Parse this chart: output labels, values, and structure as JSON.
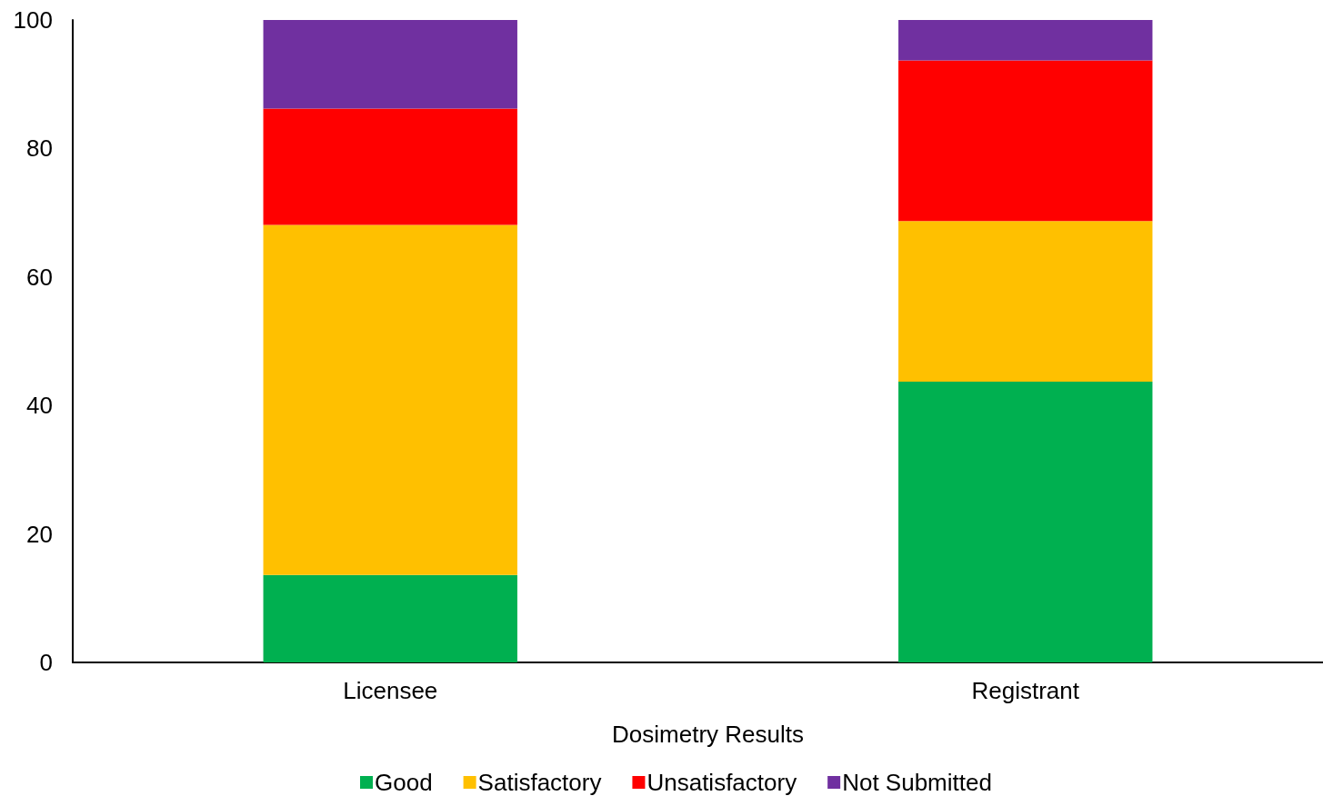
{
  "chart_data": {
    "type": "bar",
    "xlabel": "Dosimetry Results",
    "categories": [
      "Licensee",
      "Registrant"
    ],
    "series": [
      {
        "name": "Good",
        "color": "#00b050",
        "values": [
          13.6,
          43.7
        ]
      },
      {
        "name": "Satisfactory",
        "color": "#ffc000",
        "values": [
          54.5,
          25.0
        ]
      },
      {
        "name": "Unsatisfactory",
        "color": "#ff0000",
        "values": [
          18.1,
          25.0
        ]
      },
      {
        "name": "Not Submitted",
        "color": "#7030a0",
        "values": [
          13.8,
          6.3
        ]
      }
    ],
    "stacked": true,
    "ylim": [
      0,
      100
    ],
    "yticks": [
      0,
      20,
      40,
      60,
      80,
      100
    ],
    "grid": false,
    "legend": "bottom"
  }
}
